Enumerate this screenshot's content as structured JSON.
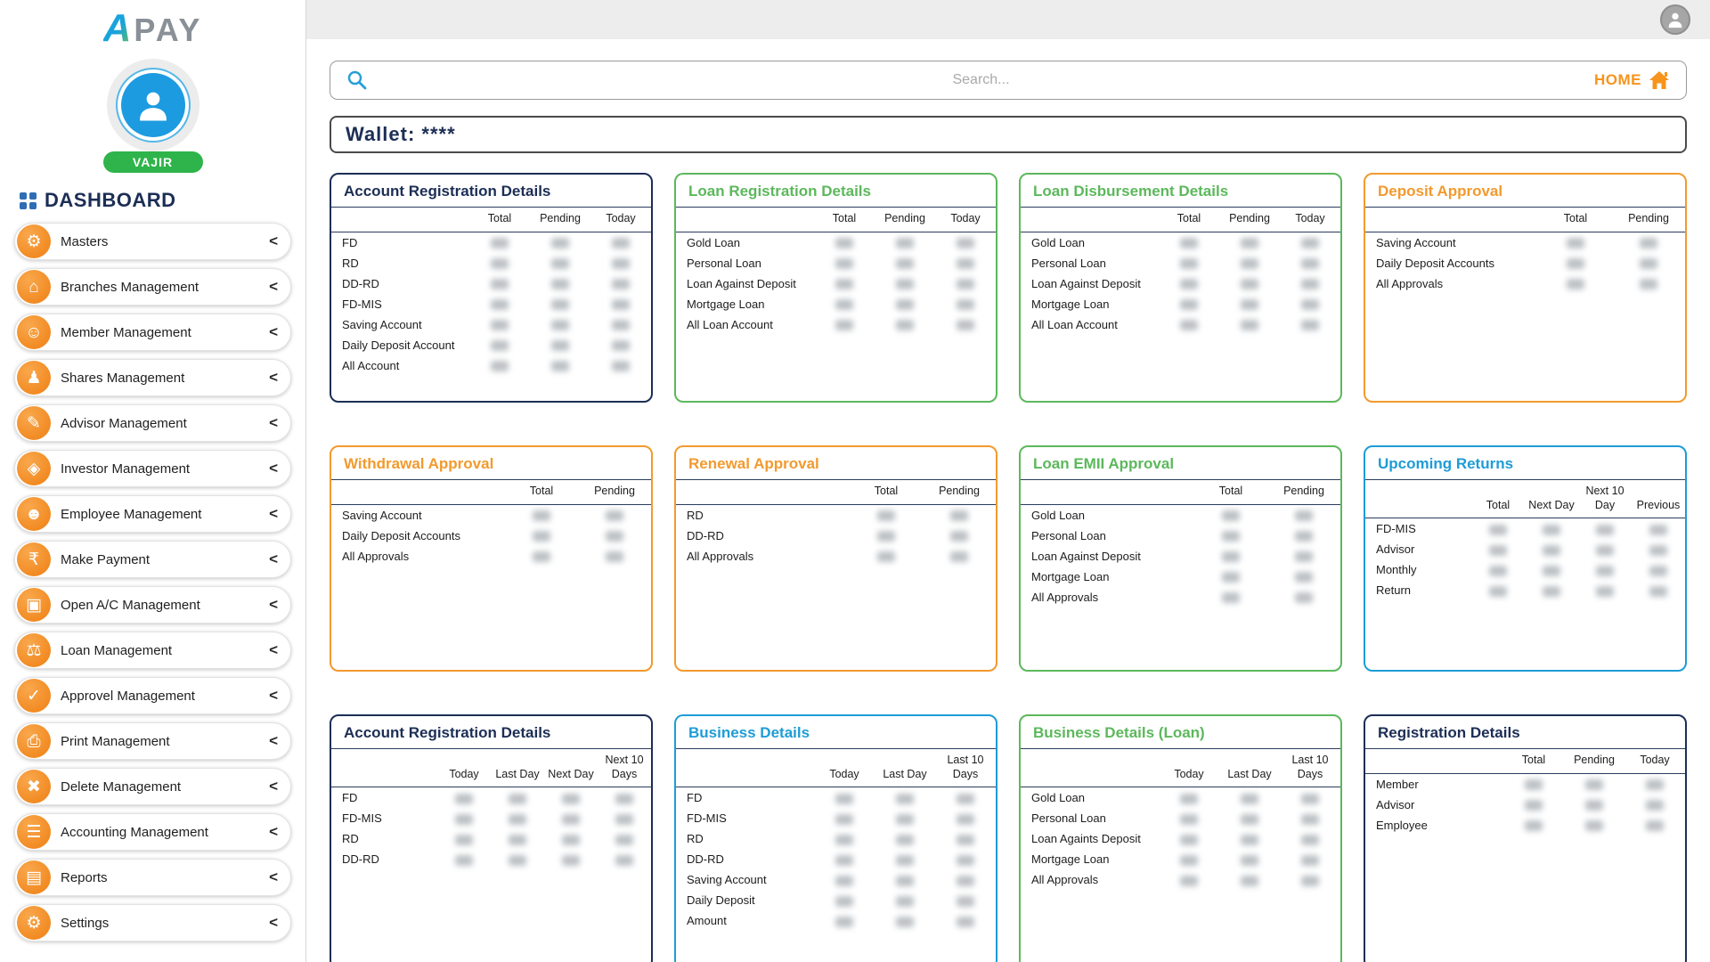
{
  "brand": {
    "mark": "A",
    "name": "PAY"
  },
  "user": {
    "name": "VAJIR"
  },
  "topbar": {
    "search_placeholder": "Search...",
    "home_label": "HOME"
  },
  "wallet": {
    "label": "Wallet: ****"
  },
  "sidebar": {
    "heading": "DASHBOARD",
    "chevron": "<",
    "items": [
      {
        "id": "masters",
        "label": "Masters",
        "icon": "gear-icon",
        "glyph": "⚙"
      },
      {
        "id": "branches-management",
        "label": "Branches Management",
        "icon": "branch-icon",
        "glyph": "⌂"
      },
      {
        "id": "member-management",
        "label": "Member Management",
        "icon": "members-icon",
        "glyph": "☺"
      },
      {
        "id": "shares-management",
        "label": "Shares Management",
        "icon": "shares-icon",
        "glyph": "♟"
      },
      {
        "id": "advisor-management",
        "label": "Advisor Management",
        "icon": "advisor-icon",
        "glyph": "✎"
      },
      {
        "id": "investor-management",
        "label": "Investor Management",
        "icon": "investor-icon",
        "glyph": "◈"
      },
      {
        "id": "employee-management",
        "label": "Employee Management",
        "icon": "employee-icon",
        "glyph": "☻"
      },
      {
        "id": "make-payment",
        "label": "Make Payment",
        "icon": "rupee-icon",
        "glyph": "₹"
      },
      {
        "id": "open-ac-management",
        "label": "Open A/C Management",
        "icon": "open-account-icon",
        "glyph": "▣"
      },
      {
        "id": "loan-management",
        "label": "Loan Management",
        "icon": "loan-icon",
        "glyph": "⚖"
      },
      {
        "id": "approvel-management",
        "label": "Approvel Management",
        "icon": "approval-check-icon",
        "glyph": "✓"
      },
      {
        "id": "print-management",
        "label": "Print Management",
        "icon": "printer-icon",
        "glyph": "⎙"
      },
      {
        "id": "delete-management",
        "label": "Delete Management",
        "icon": "trash-icon",
        "glyph": "✖"
      },
      {
        "id": "accounting-management",
        "label": "Accounting Management",
        "icon": "accounting-icon",
        "glyph": "☰"
      },
      {
        "id": "reports",
        "label": "Reports",
        "icon": "reports-icon",
        "glyph": "▤"
      },
      {
        "id": "settings",
        "label": "Settings",
        "icon": "settings-icon",
        "glyph": "⚙"
      }
    ]
  },
  "colors": {
    "navy": "#1c2e55",
    "green": "#5cb85c",
    "orange": "#f29a2e",
    "blue": "#1e9cd7",
    "accent_orange": "#f7941d",
    "badge_green": "#2eb44b",
    "avatar_blue": "#1d9be0"
  },
  "cards": [
    {
      "id": "account-registration-details",
      "title": "Account Registration Details",
      "color_key": "navy",
      "columns": [
        "Total",
        "Pending",
        "Today"
      ],
      "values_obscured": true,
      "rows": [
        "FD",
        "RD",
        "DD-RD",
        "FD-MIS",
        "Saving Account",
        "Daily Deposit Account",
        "All Account"
      ]
    },
    {
      "id": "loan-registration-details",
      "title": "Loan Registration Details",
      "color_key": "green",
      "columns": [
        "Total",
        "Pending",
        "Today"
      ],
      "values_obscured": true,
      "rows": [
        "Gold Loan",
        "Personal Loan",
        "Loan Against Deposit",
        "Mortgage Loan",
        "All Loan Account"
      ]
    },
    {
      "id": "loan-disbursement-details",
      "title": "Loan Disbursement Details",
      "color_key": "green",
      "columns": [
        "Total",
        "Pending",
        "Today"
      ],
      "values_obscured": true,
      "rows": [
        "Gold Loan",
        "Personal Loan",
        "Loan Against Deposit",
        "Mortgage Loan",
        "All Loan Account"
      ]
    },
    {
      "id": "deposit-approval",
      "title": "Deposit Approval",
      "color_key": "orange",
      "columns": [
        "Total",
        "Pending"
      ],
      "values_obscured": true,
      "rows": [
        "Saving Account",
        "Daily Deposit Accounts",
        "All Approvals"
      ]
    },
    {
      "id": "withdrawal-approval",
      "title": "Withdrawal Approval",
      "color_key": "orange",
      "columns": [
        "Total",
        "Pending"
      ],
      "values_obscured": true,
      "rows": [
        "Saving Account",
        "Daily Deposit Accounts",
        "All Approvals"
      ]
    },
    {
      "id": "renewal-approval",
      "title": "Renewal Approval",
      "color_key": "orange",
      "columns": [
        "Total",
        "Pending"
      ],
      "values_obscured": true,
      "rows": [
        "RD",
        "DD-RD",
        "All Approvals"
      ]
    },
    {
      "id": "loan-emii-approval",
      "title": "Loan EMII Approval",
      "color_key": "green",
      "columns": [
        "Total",
        "Pending"
      ],
      "values_obscured": true,
      "rows": [
        "Gold Loan",
        "Personal Loan",
        "Loan Against Deposit",
        "Mortgage Loan",
        "All Approvals"
      ]
    },
    {
      "id": "upcoming-returns",
      "title": "Upcoming Returns",
      "color_key": "blue",
      "columns": [
        "Total",
        "Next Day",
        "Next 10 Day",
        "Previous"
      ],
      "values_obscured": true,
      "rows": [
        "FD-MIS",
        "Advisor",
        "Monthly",
        "Return"
      ]
    },
    {
      "id": "account-registration-details-2",
      "title": "Account Registration Details",
      "color_key": "navy",
      "columns": [
        "Today",
        "Last Day",
        "Next Day",
        "Next 10 Days"
      ],
      "values_obscured": true,
      "rows": [
        "FD",
        "FD-MIS",
        "RD",
        "DD-RD"
      ]
    },
    {
      "id": "business-details",
      "title": "Business Details",
      "color_key": "blue",
      "columns": [
        "Today",
        "Last Day",
        "Last 10 Days"
      ],
      "values_obscured": true,
      "rows": [
        "FD",
        "FD-MIS",
        "RD",
        "DD-RD",
        "Saving Account",
        "Daily Deposit",
        "Amount"
      ]
    },
    {
      "id": "business-details-loan",
      "title": "Business Details (Loan)",
      "color_key": "green",
      "columns": [
        "Today",
        "Last Day",
        "Last 10 Days"
      ],
      "values_obscured": true,
      "rows": [
        "Gold Loan",
        "Personal Loan",
        "Loan Againts Deposit",
        "Mortgage Loan",
        "All Approvals"
      ]
    },
    {
      "id": "registration-details",
      "title": "Registration Details",
      "color_key": "navy",
      "columns": [
        "Total",
        "Pending",
        "Today"
      ],
      "values_obscured": true,
      "rows": [
        "Member",
        "Advisor",
        "Employee"
      ]
    }
  ]
}
